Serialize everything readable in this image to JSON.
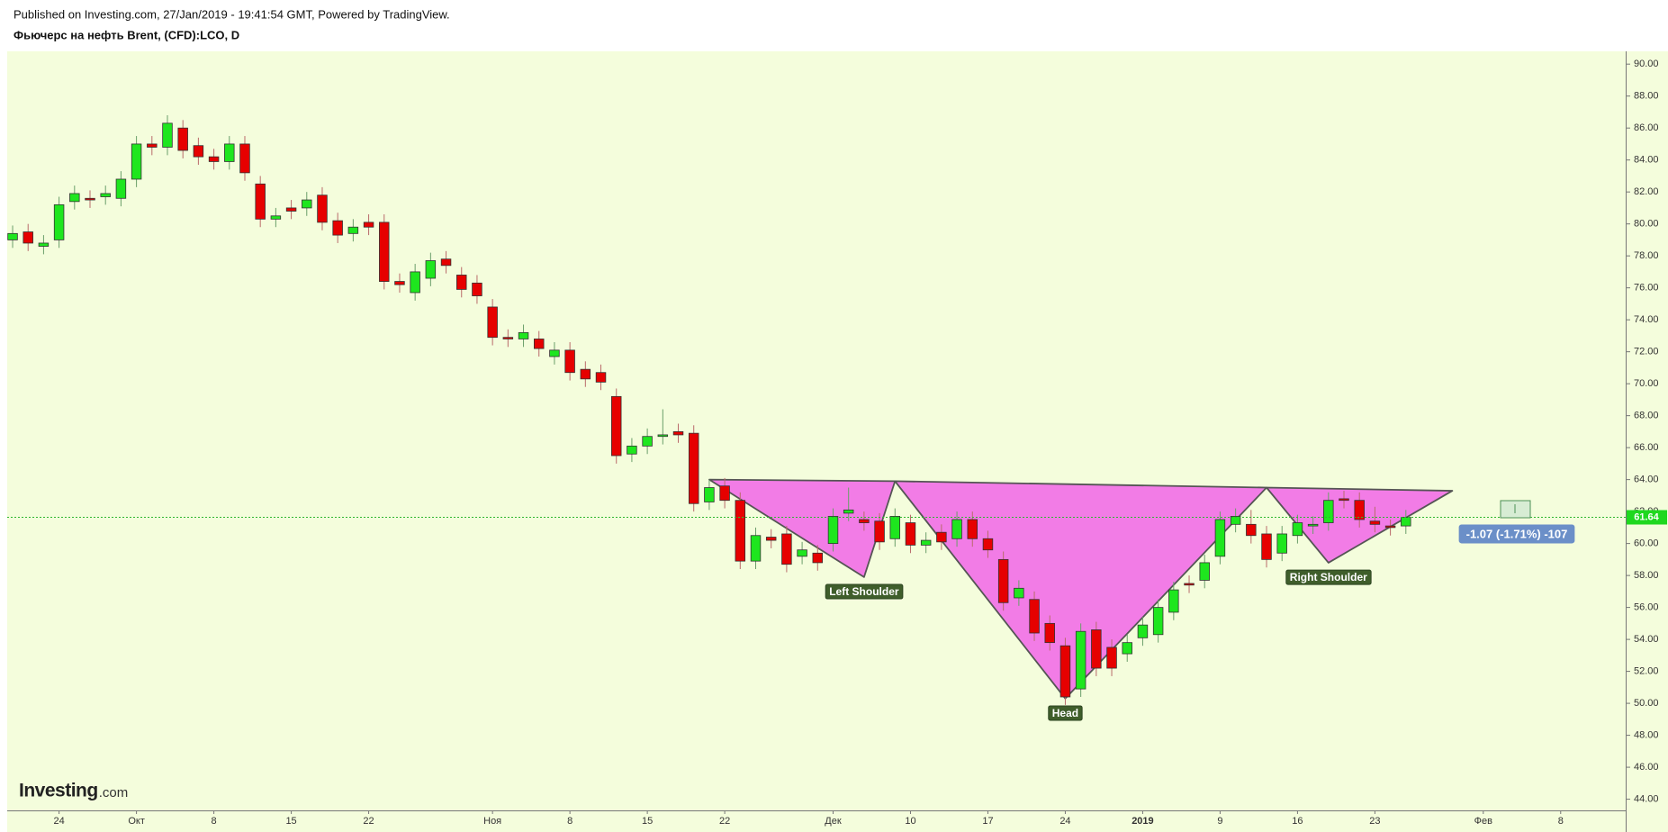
{
  "chart_data": {
    "type": "candlestick",
    "published": "Published on Investing.com, 27/Jan/2019 - 19:41:54 GMT, Powered by TradingView.",
    "title": "Фьючерс на нефть Brent, (CFD):LCO, D",
    "watermark": [
      "Investing",
      ".com"
    ],
    "up_color": "#1ee61e",
    "down_color": "#e60000",
    "open": [
      79.0,
      79.5,
      78.6,
      79.0,
      81.4,
      81.6,
      81.7,
      81.6,
      82.8,
      85.0,
      84.8,
      86.0,
      84.9,
      84.2,
      83.9,
      85.0,
      82.5,
      80.3,
      81.0,
      81.0,
      81.8,
      80.2,
      79.4,
      80.1,
      80.1,
      76.4,
      75.7,
      76.6,
      77.8,
      76.8,
      76.3,
      74.8,
      72.9,
      72.8,
      72.8,
      71.7,
      72.1,
      70.9,
      70.7,
      69.2,
      65.6,
      66.1,
      66.7,
      67.0,
      66.9,
      62.6,
      63.6,
      62.7,
      58.9,
      60.4,
      60.6,
      59.2,
      59.4,
      60.0,
      61.9,
      61.5,
      61.4,
      60.3,
      61.3,
      59.9,
      60.7,
      60.3,
      61.5,
      60.3,
      59.0,
      56.6,
      56.5,
      55.0,
      53.6,
      50.9,
      54.6,
      53.5,
      53.1,
      54.1,
      54.3,
      55.7,
      57.5,
      57.7,
      59.2,
      61.2,
      61.2,
      60.6,
      59.4,
      60.5,
      61.1,
      61.3,
      62.8,
      62.7,
      61.4,
      61.1,
      61.1
    ],
    "high": [
      79.9,
      80.0,
      79.3,
      81.7,
      82.4,
      82.1,
      82.4,
      83.3,
      85.5,
      85.5,
      86.8,
      86.5,
      85.4,
      84.7,
      85.5,
      85.5,
      83.0,
      81.0,
      81.5,
      82.0,
      82.3,
      80.7,
      80.3,
      80.6,
      80.6,
      76.9,
      77.5,
      78.2,
      78.3,
      77.3,
      76.8,
      75.3,
      73.4,
      73.7,
      73.3,
      72.6,
      72.6,
      71.4,
      71.2,
      69.7,
      66.6,
      67.2,
      68.4,
      67.5,
      67.4,
      64.0,
      64.1,
      63.2,
      61.0,
      60.9,
      61.1,
      60.1,
      59.9,
      62.2,
      63.5,
      62.0,
      61.9,
      62.2,
      61.8,
      60.7,
      61.2,
      62.0,
      62.0,
      60.8,
      59.5,
      57.7,
      57.0,
      55.5,
      54.1,
      55.0,
      55.1,
      54.0,
      54.3,
      55.4,
      56.5,
      57.6,
      58.0,
      59.3,
      62.0,
      62.2,
      62.1,
      61.1,
      61.1,
      61.8,
      61.7,
      63.2,
      63.3,
      63.2,
      62.3,
      61.5,
      62.1
    ],
    "low": [
      78.5,
      78.3,
      78.1,
      78.5,
      80.9,
      81.0,
      81.2,
      81.1,
      82.3,
      84.3,
      84.3,
      84.1,
      83.7,
      83.4,
      83.4,
      82.7,
      79.8,
      79.8,
      80.3,
      80.5,
      79.6,
      78.8,
      78.9,
      79.3,
      75.9,
      75.7,
      75.2,
      76.1,
      76.9,
      75.4,
      75.0,
      72.4,
      72.3,
      72.3,
      71.7,
      71.2,
      70.2,
      69.8,
      69.6,
      65.0,
      65.1,
      65.6,
      66.2,
      66.3,
      62.0,
      62.1,
      62.2,
      58.4,
      58.4,
      59.7,
      58.2,
      58.7,
      58.3,
      59.5,
      61.4,
      60.8,
      59.6,
      59.8,
      59.4,
      59.4,
      59.6,
      59.8,
      59.8,
      59.1,
      55.8,
      56.1,
      53.9,
      53.3,
      49.9,
      50.4,
      51.7,
      51.7,
      52.6,
      53.6,
      53.8,
      55.2,
      56.9,
      57.2,
      58.7,
      60.7,
      60.0,
      58.5,
      58.9,
      60.0,
      60.6,
      60.8,
      62.2,
      61.0,
      60.7,
      60.5,
      60.6
    ],
    "close": [
      79.4,
      78.8,
      78.8,
      81.2,
      81.9,
      81.5,
      81.9,
      82.8,
      85.0,
      84.8,
      86.3,
      84.6,
      84.2,
      83.9,
      85.0,
      83.2,
      80.3,
      80.5,
      80.8,
      81.5,
      80.1,
      79.3,
      79.8,
      79.8,
      76.4,
      76.2,
      77.0,
      77.7,
      77.4,
      75.9,
      75.5,
      72.9,
      72.8,
      73.2,
      72.2,
      72.1,
      70.7,
      70.3,
      70.1,
      65.5,
      66.1,
      66.7,
      66.8,
      66.8,
      62.5,
      63.5,
      62.7,
      58.9,
      60.5,
      60.2,
      58.7,
      59.6,
      58.8,
      61.7,
      62.1,
      61.3,
      60.1,
      61.7,
      59.9,
      60.2,
      60.1,
      61.5,
      60.3,
      59.6,
      56.3,
      57.2,
      54.4,
      53.8,
      50.4,
      54.5,
      52.2,
      52.2,
      53.8,
      54.9,
      56.0,
      57.1,
      57.4,
      58.8,
      61.5,
      61.7,
      60.5,
      59.0,
      60.6,
      61.3,
      61.2,
      62.7,
      62.7,
      61.5,
      61.2,
      61.0,
      61.64
    ],
    "last_price": 61.64,
    "change_label": "-1.07 (-1.71%) -107",
    "pattern": {
      "x": [
        45,
        55,
        57,
        68,
        81,
        85,
        93
      ],
      "y": [
        64.0,
        57.9,
        63.9,
        50.3,
        63.5,
        58.8,
        63.3
      ],
      "labels": [
        null,
        "Left Shoulder",
        null,
        "Head",
        null,
        "Right Shoulder",
        null
      ],
      "color": "#f27ce6"
    },
    "xlim": [
      -0.35,
      104.2
    ],
    "xticks": [
      {
        "value": 3,
        "label": "24"
      },
      {
        "value": 8,
        "label": "Окт"
      },
      {
        "value": 13,
        "label": "8"
      },
      {
        "value": 18,
        "label": "15"
      },
      {
        "value": 23,
        "label": "22"
      },
      {
        "value": 31,
        "label": "Ноя"
      },
      {
        "value": 36,
        "label": "8"
      },
      {
        "value": 41,
        "label": "15"
      },
      {
        "value": 46,
        "label": "22"
      },
      {
        "value": 53,
        "label": "Дек"
      },
      {
        "value": 58,
        "label": "10"
      },
      {
        "value": 63,
        "label": "17"
      },
      {
        "value": 68,
        "label": "24"
      },
      {
        "value": 73,
        "label": "2019"
      },
      {
        "value": 78,
        "label": "9"
      },
      {
        "value": 83,
        "label": "16"
      },
      {
        "value": 88,
        "label": "23"
      },
      {
        "value": 95,
        "label": "Фев"
      },
      {
        "value": 100,
        "label": "8"
      }
    ],
    "ylim": [
      43.3,
      90.8
    ],
    "yticks": [
      {
        "value": 44,
        "label": "44.00"
      },
      {
        "value": 46,
        "label": "46.00"
      },
      {
        "value": 48,
        "label": "48.00"
      },
      {
        "value": 50,
        "label": "50.00"
      },
      {
        "value": 52,
        "label": "52.00"
      },
      {
        "value": 54,
        "label": "54.00"
      },
      {
        "value": 56,
        "label": "56.00"
      },
      {
        "value": 58,
        "label": "58.00"
      },
      {
        "value": 60,
        "label": "60.00"
      },
      {
        "value": 62,
        "label": "62.00"
      },
      {
        "value": 64,
        "label": "64.00"
      },
      {
        "value": 66,
        "label": "66.00"
      },
      {
        "value": 68,
        "label": "68.00"
      },
      {
        "value": 70,
        "label": "70.00"
      },
      {
        "value": 72,
        "label": "72.00"
      },
      {
        "value": 74,
        "label": "74.00"
      },
      {
        "value": 76,
        "label": "76.00"
      },
      {
        "value": 78,
        "label": "78.00"
      },
      {
        "value": 80,
        "label": "80.00"
      },
      {
        "value": 82,
        "label": "82.00"
      },
      {
        "value": 84,
        "label": "84.00"
      },
      {
        "value": 86,
        "label": "86.00"
      },
      {
        "value": 88,
        "label": "88.00"
      },
      {
        "value": 90,
        "label": "90.00"
      }
    ]
  }
}
